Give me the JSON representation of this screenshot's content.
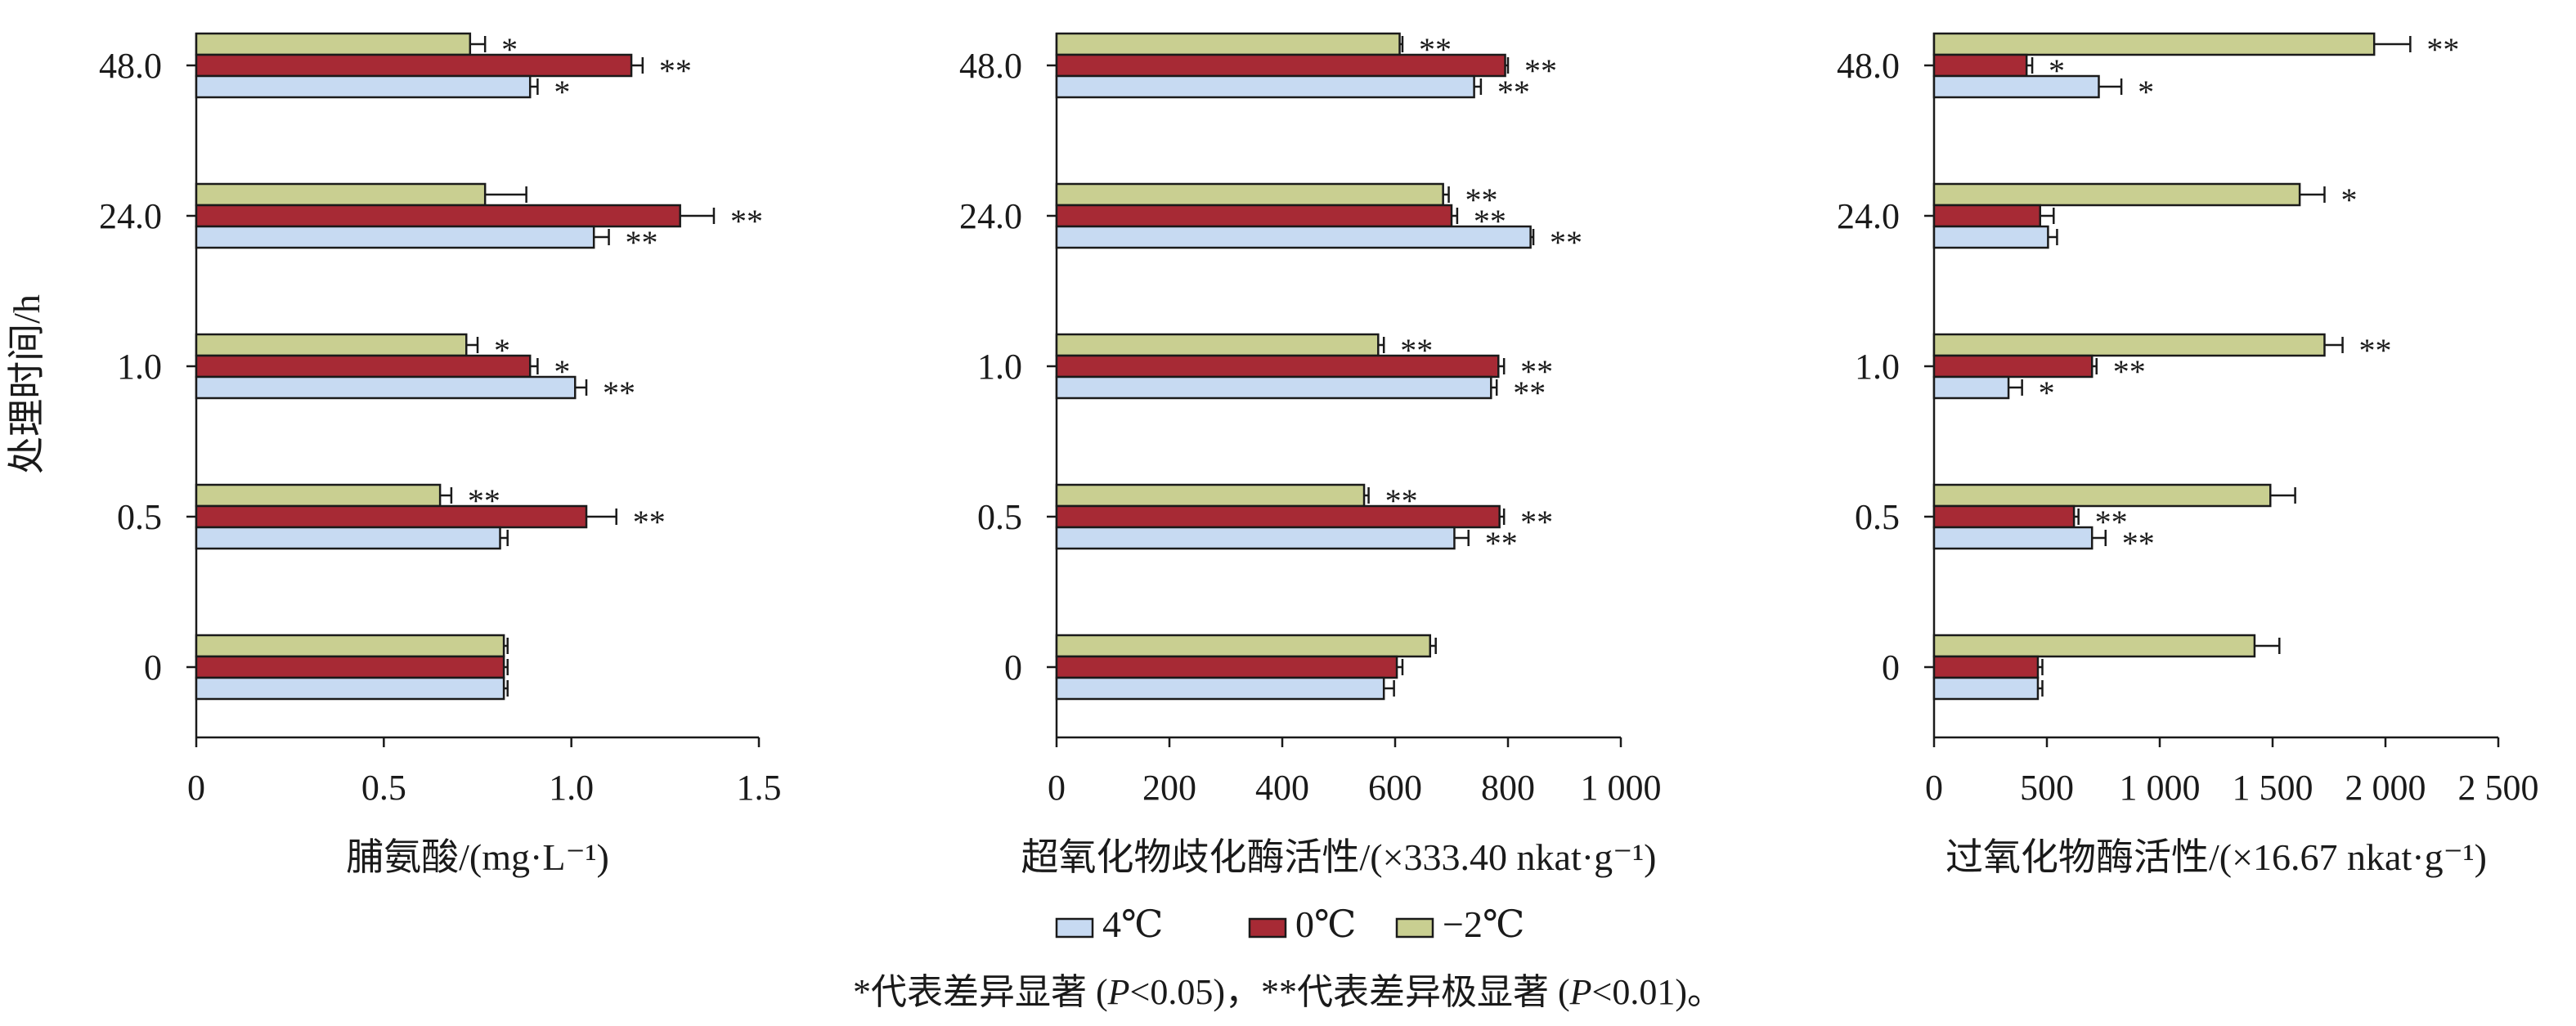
{
  "chart_data": {
    "type": "bar",
    "orientation": "horizontal",
    "y_axis_title": "处理时间/h",
    "categories": [
      "0",
      "0.5",
      "1.0",
      "24.0",
      "48.0"
    ],
    "legend": {
      "placement": "bottom-center",
      "entries": [
        {
          "name": "4℃",
          "color": "#c7daf2"
        },
        {
          "name": "0℃",
          "color": "#a72a35"
        },
        {
          "name": "−2℃",
          "color": "#c9cf91"
        }
      ]
    },
    "note": {
      "p1": "*代表差异显著 (",
      "p2": "P",
      "p3": "<0.05)，**代表差异极显著 (",
      "p4": "P",
      "p5": "<0.01)。"
    },
    "panels": [
      {
        "xlabel": "脯氨酸/(mg·L⁻¹)",
        "xlim": [
          0,
          1.5
        ],
        "ticks": [
          0,
          0.5,
          1.0,
          1.5
        ],
        "tick_labels": [
          "0",
          "0.5",
          "1.0",
          "1.5"
        ],
        "series": [
          {
            "name": "4℃",
            "values": [
              0.82,
              0.81,
              1.01,
              1.06,
              0.89
            ],
            "errors": [
              0.01,
              0.02,
              0.03,
              0.04,
              0.02
            ],
            "sig": [
              "",
              "",
              "**",
              "**",
              "*"
            ]
          },
          {
            "name": "0℃",
            "values": [
              0.82,
              1.04,
              0.89,
              1.29,
              1.16
            ],
            "errors": [
              0.01,
              0.08,
              0.02,
              0.09,
              0.03
            ],
            "sig": [
              "",
              "**",
              "*",
              "**",
              "**"
            ]
          },
          {
            "name": "−2℃",
            "values": [
              0.82,
              0.65,
              0.72,
              0.77,
              0.73
            ],
            "errors": [
              0.01,
              0.03,
              0.03,
              0.11,
              0.04
            ],
            "sig": [
              "",
              "**",
              "*",
              "",
              "*"
            ]
          }
        ]
      },
      {
        "xlabel": "超氧化物歧化酶活性/(×333.40 nkat·g⁻¹)",
        "xlim": [
          0,
          1000
        ],
        "ticks": [
          0,
          200,
          400,
          600,
          800,
          1000
        ],
        "tick_labels": [
          "0",
          "200",
          "400",
          "600",
          "800",
          "1 000"
        ],
        "series": [
          {
            "name": "4℃",
            "values": [
              580,
              705,
              770,
              840,
              740
            ],
            "errors": [
              18,
              25,
              10,
              5,
              12
            ],
            "sig": [
              "",
              "**",
              "**",
              "**",
              "**"
            ]
          },
          {
            "name": "0℃",
            "values": [
              603,
              785,
              783,
              700,
              795
            ],
            "errors": [
              10,
              8,
              10,
              10,
              5
            ],
            "sig": [
              "",
              "**",
              "**",
              "**",
              "**"
            ]
          },
          {
            "name": "−2℃",
            "values": [
              662,
              545,
              570,
              685,
              608
            ],
            "errors": [
              10,
              8,
              10,
              10,
              5
            ],
            "sig": [
              "",
              "**",
              "**",
              "**",
              "**"
            ]
          }
        ]
      },
      {
        "xlabel": "过氧化物酶活性/(×16.67 nkat·g⁻¹)",
        "xlim": [
          0,
          2500
        ],
        "ticks": [
          0,
          500,
          1000,
          1500,
          2000,
          2500
        ],
        "tick_labels": [
          "0",
          "500",
          "1 000",
          "1 500",
          "2 000",
          "2 500"
        ],
        "series": [
          {
            "name": "4℃",
            "values": [
              460,
              700,
              330,
              505,
              730
            ],
            "errors": [
              20,
              60,
              60,
              40,
              100
            ],
            "sig": [
              "",
              "**",
              "*",
              "",
              "*"
            ]
          },
          {
            "name": "0℃",
            "values": [
              460,
              620,
              700,
              470,
              410
            ],
            "errors": [
              20,
              20,
              20,
              60,
              25
            ],
            "sig": [
              "",
              "**",
              "**",
              "",
              "*"
            ]
          },
          {
            "name": "−2℃",
            "values": [
              1420,
              1490,
              1730,
              1620,
              1950
            ],
            "errors": [
              110,
              110,
              80,
              110,
              160
            ],
            "sig": [
              "",
              "",
              "**",
              "*",
              "**"
            ]
          }
        ]
      }
    ]
  }
}
